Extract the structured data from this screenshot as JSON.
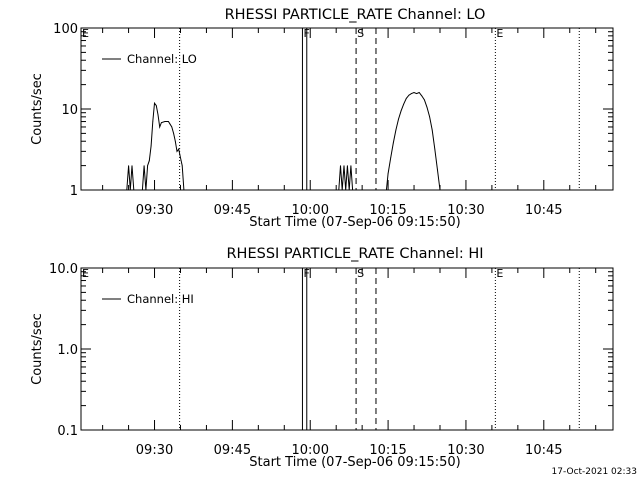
{
  "footer": {
    "timestamp": "17-Oct-2021 02:33"
  },
  "chart_data": [
    {
      "type": "line",
      "title": "RHESSI PARTICLE_RATE Channel: LO",
      "xlabel": "Start Time (07-Sep-06 09:15:50)",
      "ylabel": "Counts/sec",
      "y_scale": "log",
      "xlim": [
        "09:15:50",
        "10:58:20"
      ],
      "ylim": [
        1,
        100
      ],
      "x_ticks": [
        "09:30",
        "09:45",
        "10:00",
        "10:15",
        "10:30",
        "10:45"
      ],
      "y_ticks": [
        "1",
        "10",
        "100"
      ],
      "legend": {
        "position": "top-left",
        "entries": [
          "Channel: LO"
        ]
      },
      "grid": false,
      "markers": [
        {
          "label": "E",
          "time": "09:15:50",
          "style": "dotted"
        },
        {
          "label": "",
          "time": "09:34:50",
          "style": "dotted"
        },
        {
          "label": "F",
          "time": "09:58:30",
          "style": "solid"
        },
        {
          "label": "",
          "time": "09:59:20",
          "style": "solid"
        },
        {
          "label": "S",
          "time": "10:08:50",
          "style": "dashed"
        },
        {
          "label": "",
          "time": "10:12:40",
          "style": "dashed"
        },
        {
          "label": "E",
          "time": "10:35:40",
          "style": "dotted"
        },
        {
          "label": "",
          "time": "10:51:50",
          "style": "dotted"
        }
      ],
      "series": [
        {
          "name": "Channel: LO",
          "segments": [
            [
              [
                "09:24:40",
                1.0
              ],
              [
                "09:25:00",
                2.0
              ],
              [
                "09:25:20",
                1.0
              ],
              [
                "09:25:40",
                2.0
              ],
              [
                "09:26:00",
                1.0
              ],
              [
                "09:27:40",
                1.0
              ],
              [
                "09:28:00",
                2.0
              ],
              [
                "09:28:20",
                1.0
              ],
              [
                "09:28:40",
                2.0
              ],
              [
                "09:29:00",
                2.3
              ],
              [
                "09:29:20",
                3.5
              ],
              [
                "09:29:40",
                7.0
              ],
              [
                "09:30:00",
                11.8
              ],
              [
                "09:30:20",
                11.0
              ],
              [
                "09:30:40",
                8.5
              ],
              [
                "09:31:00",
                6.0
              ],
              [
                "09:31:20",
                6.8
              ],
              [
                "09:32:00",
                7.0
              ],
              [
                "09:32:40",
                7.0
              ],
              [
                "09:33:00",
                6.5
              ],
              [
                "09:33:20",
                6.0
              ],
              [
                "09:33:40",
                5.0
              ],
              [
                "09:34:00",
                4.0
              ],
              [
                "09:34:20",
                3.0
              ],
              [
                "09:34:40",
                3.2
              ],
              [
                "09:35:00",
                2.5
              ],
              [
                "09:35:20",
                2.0
              ],
              [
                "09:35:40",
                1.0
              ]
            ],
            [
              [
                "10:05:30",
                1.0
              ],
              [
                "10:05:50",
                2.0
              ],
              [
                "10:06:10",
                1.0
              ],
              [
                "10:06:30",
                2.0
              ],
              [
                "10:06:50",
                1.0
              ],
              [
                "10:07:10",
                2.0
              ],
              [
                "10:07:30",
                1.0
              ],
              [
                "10:07:50",
                2.0
              ],
              [
                "10:08:10",
                1.0
              ]
            ],
            [
              [
                "10:14:40",
                1.0
              ],
              [
                "10:15:00",
                1.6
              ],
              [
                "10:15:30",
                2.5
              ],
              [
                "10:16:00",
                3.8
              ],
              [
                "10:16:30",
                5.5
              ],
              [
                "10:17:00",
                7.5
              ],
              [
                "10:17:30",
                9.5
              ],
              [
                "10:18:00",
                11.5
              ],
              [
                "10:18:30",
                13.5
              ],
              [
                "10:19:00",
                14.8
              ],
              [
                "10:19:30",
                15.5
              ],
              [
                "10:20:00",
                16.0
              ],
              [
                "10:20:30",
                15.5
              ],
              [
                "10:21:00",
                16.0
              ],
              [
                "10:21:30",
                14.5
              ],
              [
                "10:22:00",
                13.0
              ],
              [
                "10:22:30",
                10.5
              ],
              [
                "10:23:00",
                8.0
              ],
              [
                "10:23:30",
                5.5
              ],
              [
                "10:24:00",
                3.2
              ],
              [
                "10:24:30",
                1.8
              ],
              [
                "10:25:00",
                1.0
              ]
            ]
          ]
        }
      ]
    },
    {
      "type": "line",
      "title": "RHESSI PARTICLE_RATE Channel: HI",
      "xlabel": "Start Time (07-Sep-06 09:15:50)",
      "ylabel": "Counts/sec",
      "y_scale": "log",
      "xlim": [
        "09:15:50",
        "10:58:20"
      ],
      "ylim": [
        0.1,
        10
      ],
      "x_ticks": [
        "09:30",
        "09:45",
        "10:00",
        "10:15",
        "10:30",
        "10:45"
      ],
      "y_ticks": [
        "0.1",
        "1.0",
        "10.0"
      ],
      "legend": {
        "position": "top-left",
        "entries": [
          "Channel: HI"
        ]
      },
      "grid": false,
      "markers": [
        {
          "label": "E",
          "time": "09:15:50",
          "style": "dotted"
        },
        {
          "label": "",
          "time": "09:34:50",
          "style": "dotted"
        },
        {
          "label": "F",
          "time": "09:58:30",
          "style": "solid"
        },
        {
          "label": "",
          "time": "09:59:20",
          "style": "solid"
        },
        {
          "label": "S",
          "time": "10:08:50",
          "style": "dashed"
        },
        {
          "label": "",
          "time": "10:12:40",
          "style": "dashed"
        },
        {
          "label": "E",
          "time": "10:35:40",
          "style": "dotted"
        },
        {
          "label": "",
          "time": "10:51:50",
          "style": "dotted"
        }
      ],
      "series": [
        {
          "name": "Channel: HI",
          "segments": []
        }
      ]
    }
  ]
}
